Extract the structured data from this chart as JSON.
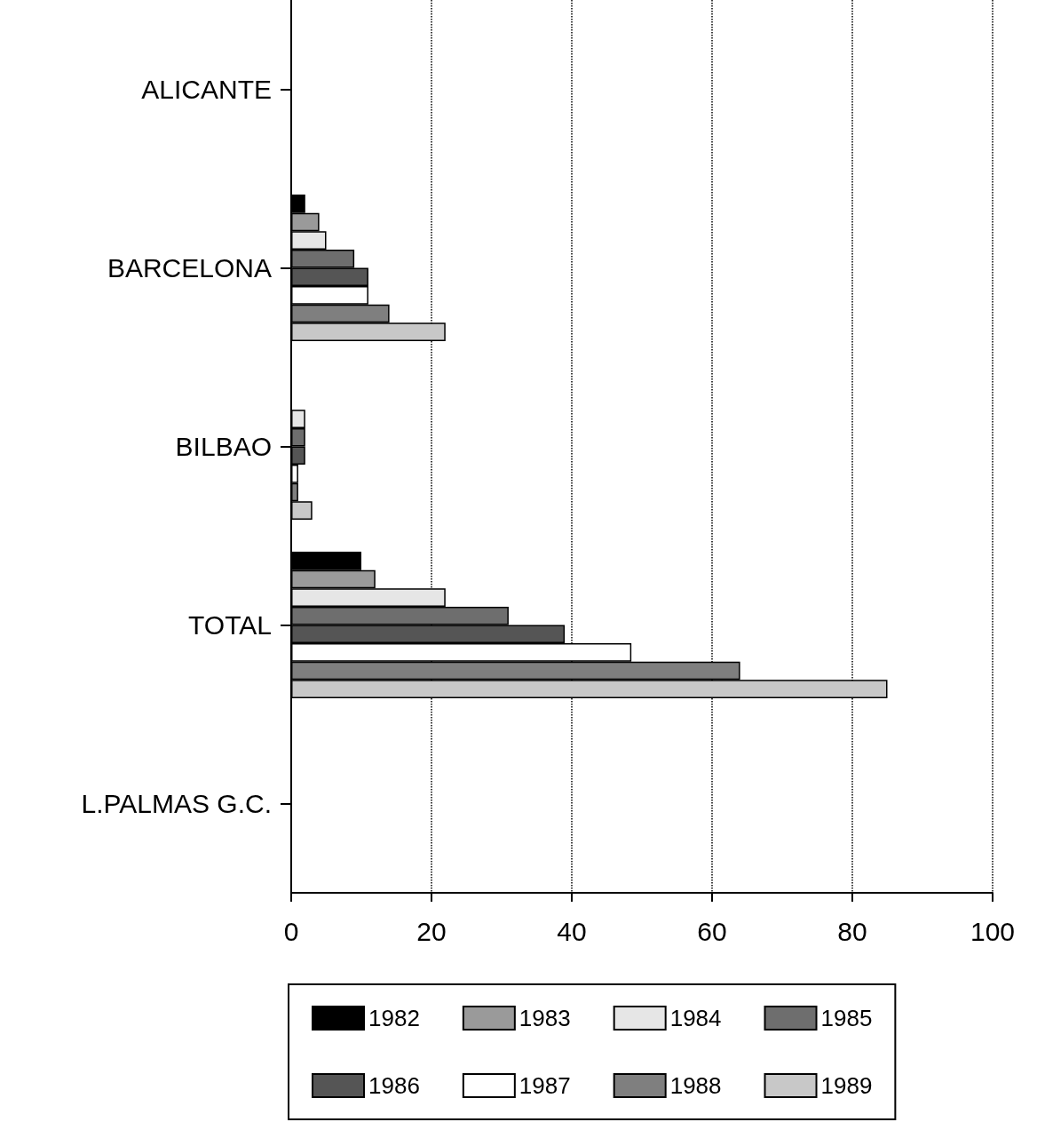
{
  "chart_data": {
    "type": "bar",
    "orientation": "horizontal",
    "categories": [
      "ALICANTE",
      "BARCELONA",
      "BILBAO",
      "TOTAL",
      "L.PALMAS G.C."
    ],
    "series": [
      {
        "name": "1982",
        "color": "#000000",
        "values": [
          0,
          2,
          0,
          10,
          0
        ]
      },
      {
        "name": "1983",
        "color": "#9a9a9a",
        "values": [
          0,
          4,
          0,
          12,
          0
        ]
      },
      {
        "name": "1984",
        "color": "#e6e6e6",
        "values": [
          0,
          5,
          2,
          22,
          0
        ]
      },
      {
        "name": "1985",
        "color": "#6e6e6e",
        "values": [
          0,
          9,
          2,
          31,
          0
        ]
      },
      {
        "name": "1986",
        "color": "#555555",
        "values": [
          0,
          11,
          2,
          39,
          0
        ]
      },
      {
        "name": "1987",
        "color": "#ffffff",
        "values": [
          0,
          11,
          1,
          48.5,
          0
        ]
      },
      {
        "name": "1988",
        "color": "#7f7f7f",
        "values": [
          0,
          14,
          1,
          64,
          0
        ]
      },
      {
        "name": "1989",
        "color": "#c8c8c8",
        "values": [
          0,
          22,
          3,
          85,
          0
        ]
      }
    ],
    "xlim": [
      0,
      100
    ],
    "xticks": [
      0,
      20,
      40,
      60,
      80,
      100
    ],
    "grid": "x",
    "legend": "bottom"
  }
}
